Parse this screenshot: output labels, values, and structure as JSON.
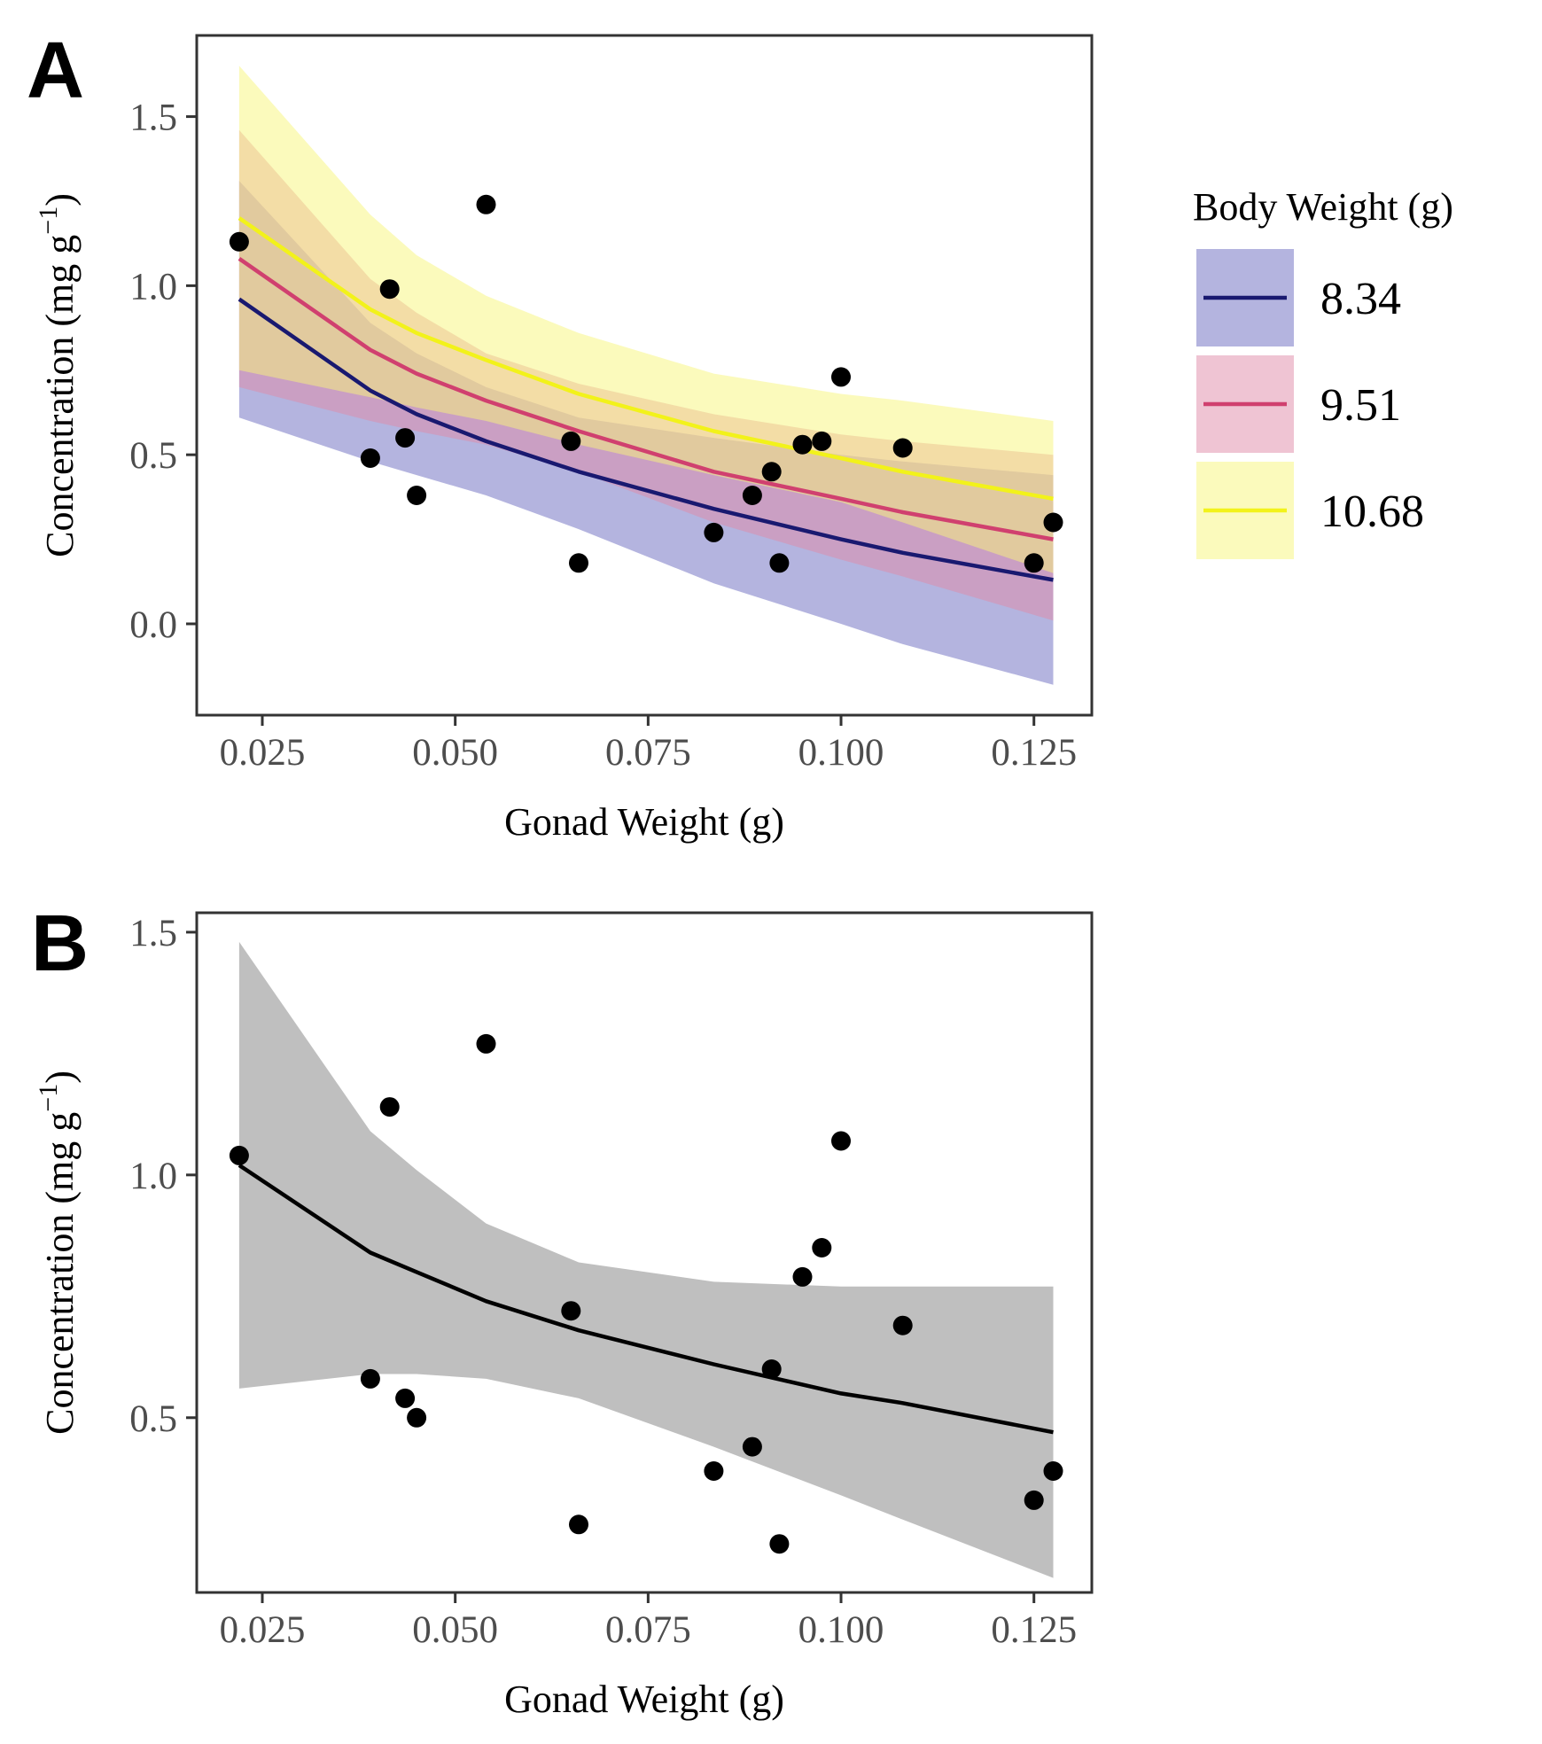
{
  "chart_data": [
    {
      "type": "line",
      "panel_label": "A",
      "xlabel": "Gonad Weight (g)",
      "ylabel_main": "Concentration (mg  g",
      "ylabel_sup": "−1",
      "ylabel_close": ")",
      "xlim": [
        0.0165,
        0.1325
      ],
      "ylim": [
        -0.27,
        1.74
      ],
      "xticks": [
        0.025,
        0.05,
        0.075,
        0.1,
        0.125
      ],
      "xtick_labels": [
        "0.025",
        "0.050",
        "0.075",
        "0.100",
        "0.125"
      ],
      "yticks": [
        0.0,
        0.5,
        1.0,
        1.5
      ],
      "ytick_labels": [
        "0.0",
        "0.5",
        "1.0",
        "1.5"
      ],
      "grid": false,
      "legend": {
        "title": "Body Weight (g)",
        "placement": "right",
        "entries": [
          "8.34",
          "9.51",
          "10.68"
        ]
      },
      "points": {
        "x": [
          0.022,
          0.039,
          0.0415,
          0.0435,
          0.045,
          0.054,
          0.065,
          0.066,
          0.0835,
          0.0885,
          0.091,
          0.092,
          0.095,
          0.0975,
          0.1,
          0.108,
          0.125,
          0.1275
        ],
        "y": [
          1.13,
          0.49,
          0.99,
          0.55,
          0.38,
          1.24,
          0.54,
          0.18,
          0.27,
          0.38,
          0.45,
          0.18,
          0.53,
          0.54,
          0.73,
          0.52,
          0.18,
          0.3
        ]
      },
      "series": [
        {
          "name": "8.34",
          "color": "#191970",
          "ribbon_color": "#6a6ac0",
          "x": [
            0.022,
            0.039,
            0.045,
            0.054,
            0.066,
            0.0835,
            0.1,
            0.108,
            0.1275
          ],
          "y": [
            0.96,
            0.69,
            0.62,
            0.54,
            0.45,
            0.34,
            0.25,
            0.21,
            0.13
          ],
          "lower": [
            0.61,
            0.48,
            0.44,
            0.38,
            0.28,
            0.12,
            0.0,
            -0.06,
            -0.18
          ],
          "upper": [
            1.31,
            0.89,
            0.8,
            0.7,
            0.61,
            0.55,
            0.5,
            0.48,
            0.44
          ]
        },
        {
          "name": "9.51",
          "color": "#d0406f",
          "ribbon_color": "#e08aa8",
          "x": [
            0.022,
            0.039,
            0.045,
            0.054,
            0.066,
            0.0835,
            0.1,
            0.108,
            0.1275
          ],
          "y": [
            1.08,
            0.81,
            0.74,
            0.66,
            0.57,
            0.45,
            0.37,
            0.33,
            0.25
          ],
          "lower": [
            0.7,
            0.6,
            0.57,
            0.53,
            0.45,
            0.3,
            0.19,
            0.14,
            0.01
          ],
          "upper": [
            1.46,
            1.02,
            0.92,
            0.8,
            0.71,
            0.62,
            0.56,
            0.54,
            0.5
          ]
        },
        {
          "name": "10.68",
          "color": "#f2f21a",
          "ribbon_color": "#f8f57a",
          "x": [
            0.022,
            0.039,
            0.045,
            0.054,
            0.066,
            0.0835,
            0.1,
            0.108,
            0.1275
          ],
          "y": [
            1.2,
            0.93,
            0.86,
            0.78,
            0.68,
            0.57,
            0.49,
            0.45,
            0.37
          ],
          "lower": [
            0.75,
            0.67,
            0.64,
            0.6,
            0.53,
            0.44,
            0.36,
            0.3,
            0.15
          ],
          "upper": [
            1.65,
            1.21,
            1.09,
            0.97,
            0.86,
            0.74,
            0.68,
            0.66,
            0.6
          ]
        }
      ]
    },
    {
      "type": "line",
      "panel_label": "B",
      "xlabel": "Gonad Weight (g)",
      "ylabel_main": "Concentration (mg  g",
      "ylabel_sup": "−1",
      "ylabel_close": ")",
      "xlim": [
        0.0165,
        0.1325
      ],
      "ylim": [
        0.14,
        1.54
      ],
      "xticks": [
        0.025,
        0.05,
        0.075,
        0.1,
        0.125
      ],
      "xtick_labels": [
        "0.025",
        "0.050",
        "0.075",
        "0.100",
        "0.125"
      ],
      "yticks": [
        0.5,
        1.0,
        1.5
      ],
      "ytick_labels": [
        "0.5",
        "1.0",
        "1.5"
      ],
      "grid": false,
      "points": {
        "x": [
          0.022,
          0.039,
          0.0415,
          0.0435,
          0.045,
          0.054,
          0.065,
          0.066,
          0.0835,
          0.0885,
          0.091,
          0.092,
          0.095,
          0.0975,
          0.1,
          0.108,
          0.125,
          0.1275
        ],
        "y": [
          1.04,
          0.58,
          1.14,
          0.54,
          0.5,
          1.27,
          0.72,
          0.28,
          0.39,
          0.44,
          0.6,
          0.24,
          0.79,
          0.85,
          1.07,
          0.69,
          0.33,
          0.39
        ]
      },
      "series": [
        {
          "color": "#000000",
          "ribbon_color": "#bfbfbf",
          "x": [
            0.022,
            0.039,
            0.045,
            0.054,
            0.066,
            0.0835,
            0.1,
            0.108,
            0.1275
          ],
          "y": [
            1.02,
            0.84,
            0.8,
            0.74,
            0.68,
            0.61,
            0.55,
            0.53,
            0.47
          ],
          "lower": [
            0.56,
            0.59,
            0.59,
            0.58,
            0.54,
            0.44,
            0.34,
            0.29,
            0.17
          ],
          "upper": [
            1.48,
            1.09,
            1.01,
            0.9,
            0.82,
            0.78,
            0.77,
            0.77,
            0.77
          ]
        }
      ]
    }
  ]
}
